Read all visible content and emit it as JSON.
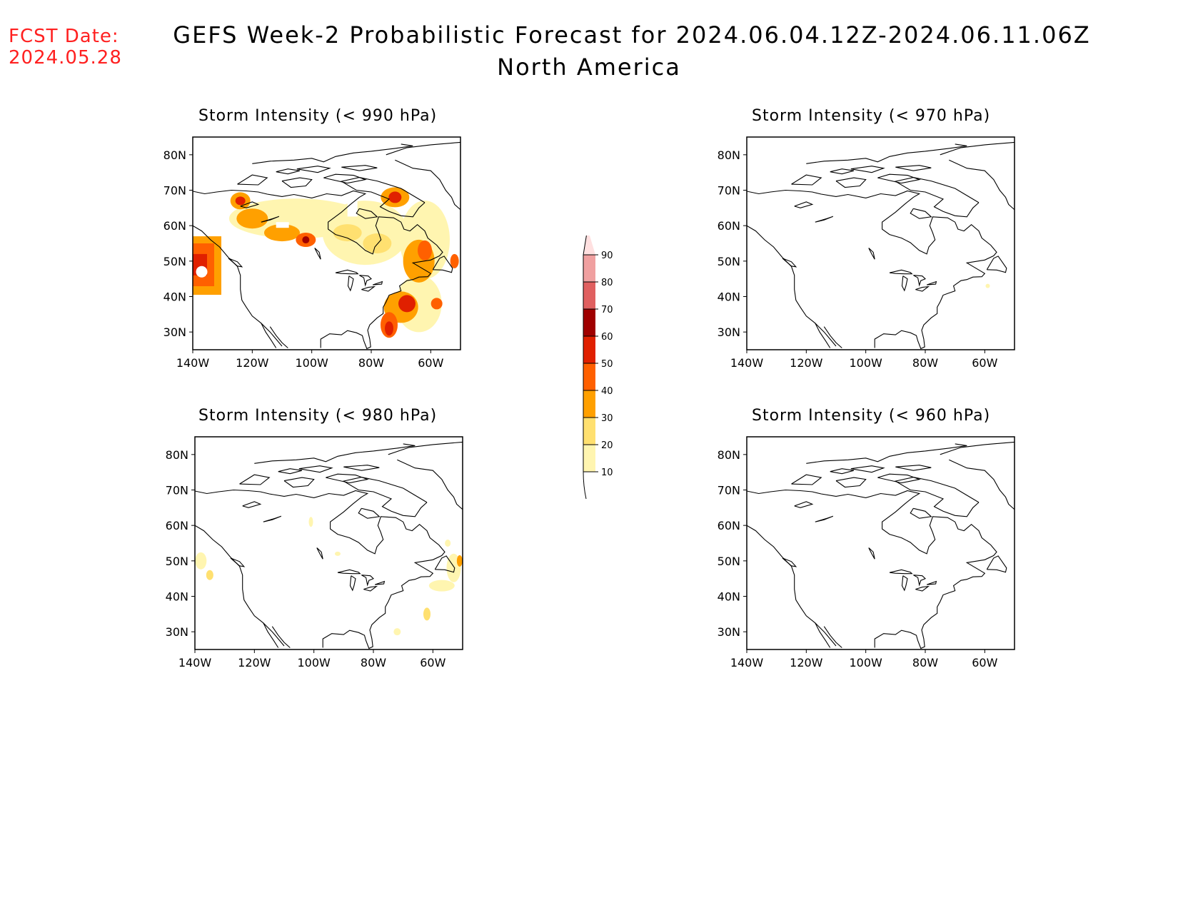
{
  "header": {
    "fcst_label": "FCST Date:",
    "fcst_date": "2024.05.28",
    "title": "GEFS Week-2 Probabilistic Forecast for 2024.06.04.12Z-2024.06.11.06Z",
    "subtitle": "North America"
  },
  "axes": {
    "lat_ticks": [
      "80N",
      "70N",
      "60N",
      "50N",
      "40N",
      "30N"
    ],
    "lon_ticks": [
      "140W",
      "120W",
      "100W",
      "80W",
      "60W"
    ]
  },
  "panels": [
    {
      "id": "p990",
      "title": "Storm Intensity (< 990 hPa)",
      "activity": "high"
    },
    {
      "id": "p970",
      "title": "Storm Intensity (< 970 hPa)",
      "activity": "trace"
    },
    {
      "id": "p980",
      "title": "Storm Intensity (< 980 hPa)",
      "activity": "low"
    },
    {
      "id": "p960",
      "title": "Storm Intensity (< 960 hPa)",
      "activity": "none"
    }
  ],
  "colorbar": {
    "levels": [
      "10",
      "20",
      "30",
      "40",
      "50",
      "60",
      "70",
      "80",
      "90"
    ],
    "colors": [
      "#fff5b0",
      "#ffe070",
      "#ffa000",
      "#ff6000",
      "#e02000",
      "#a00000",
      "#e06060",
      "#f0a0a0",
      "#ffe0e0"
    ]
  },
  "map_colors": {
    "coast": "#000000",
    "shade_10": "#fff5b0",
    "shade_20": "#ffe070",
    "shade_30": "#ffa000",
    "shade_40": "#ff6000",
    "shade_50": "#e02000",
    "shade_60": "#a00000"
  }
}
